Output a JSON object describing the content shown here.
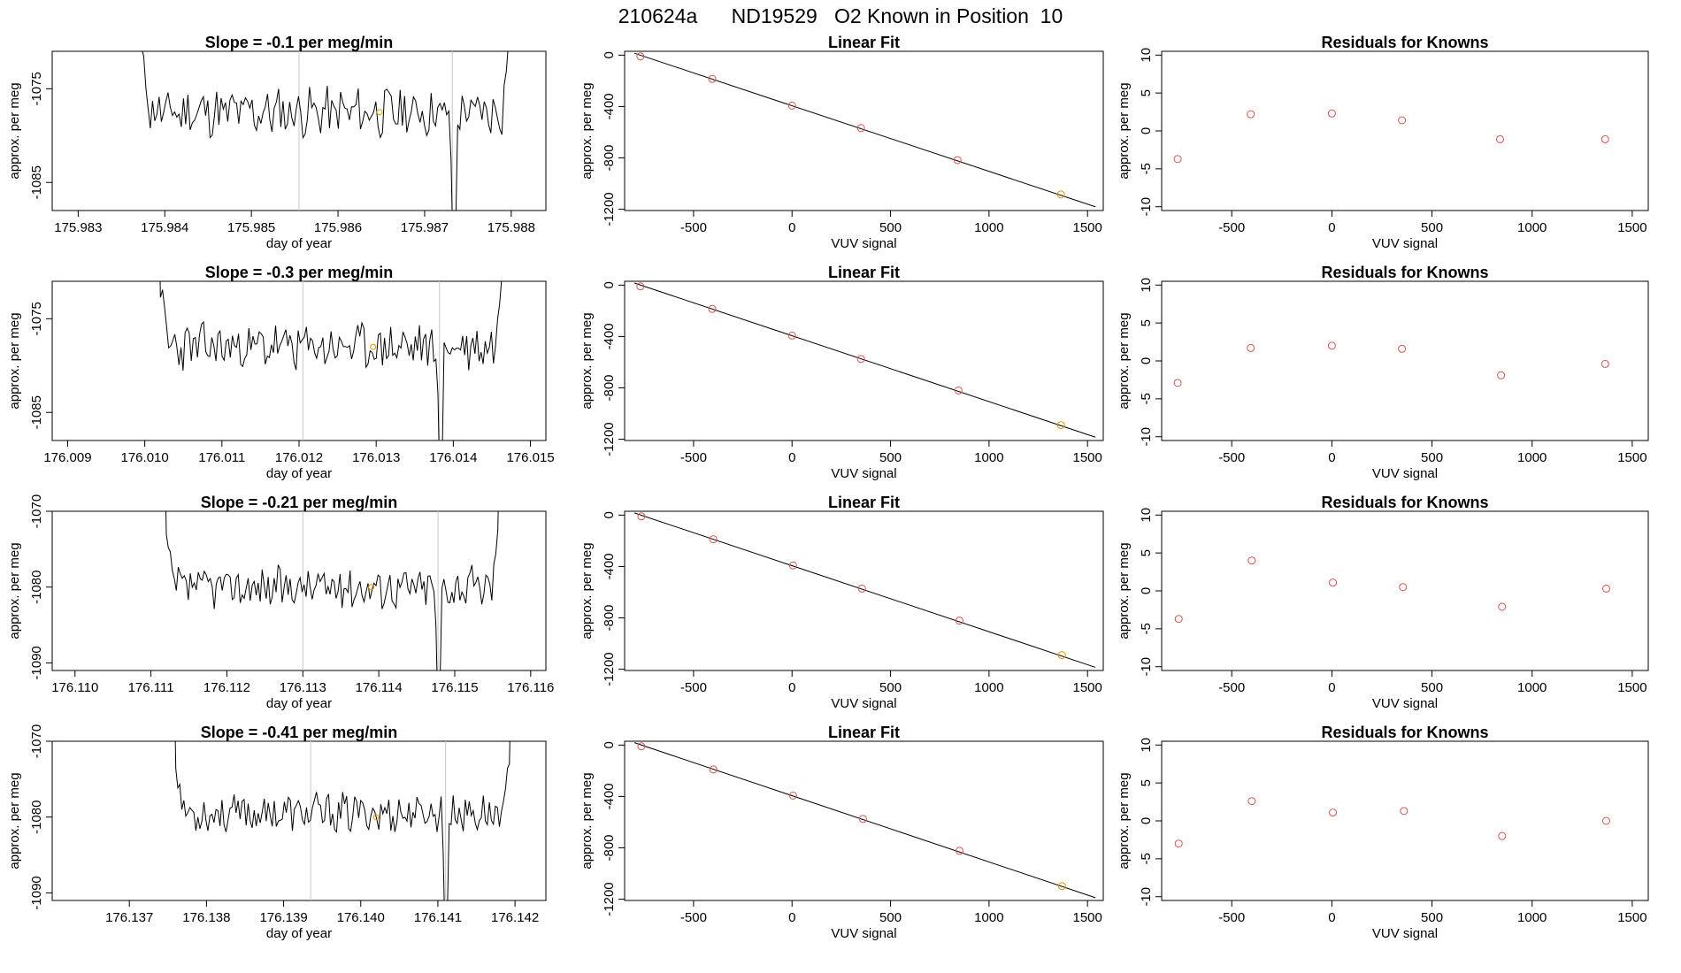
{
  "title": "210624a      ND19529   O2 Known in Position  10",
  "colors": {
    "trace": "#000000",
    "points": "#d9534f",
    "highlight": "#e69500",
    "guides": "#c8c8c8",
    "fitline": "#000000"
  },
  "chart_data": [
    {
      "type": "line",
      "panel": "time-series",
      "row": 0,
      "title": "Slope =  -0.1  per meg/min",
      "xlabel": "day of year",
      "ylabel": "approx. per meg",
      "xticks": [
        "175.983",
        "175.984",
        "175.985",
        "175.986",
        "175.987",
        "175.988"
      ],
      "xlim": [
        175.9827,
        175.9884
      ],
      "yticks": [
        "-1075",
        "-1085"
      ],
      "ylim": [
        -1088,
        -1071
      ],
      "x_start": 175.98368,
      "x_end": 175.98802,
      "baseline": -1077.5,
      "wiggle": 2.3,
      "vlines": [
        175.98555,
        175.98732
      ],
      "dip_at": 175.98732,
      "marker": [
        175.98648,
        -1077.5
      ],
      "seed": 11
    },
    {
      "type": "line",
      "panel": "time-series",
      "row": 1,
      "title": "Slope =  -0.3  per meg/min",
      "xlabel": "day of year",
      "ylabel": "approx. per meg",
      "xticks": [
        "176.009",
        "176.010",
        "176.011",
        "176.012",
        "176.013",
        "176.014",
        "176.015"
      ],
      "xlim": [
        176.0088,
        176.0152
      ],
      "yticks": [
        "-1075",
        "-1085"
      ],
      "ylim": [
        -1088,
        -1071
      ],
      "x_start": 176.01015,
      "x_end": 176.01468,
      "baseline": -1078,
      "wiggle": 2.2,
      "vlines": [
        176.01205,
        176.01382
      ],
      "dip_at": 176.01382,
      "marker": [
        176.01296,
        -1078
      ],
      "seed": 23
    },
    {
      "type": "line",
      "panel": "time-series",
      "row": 2,
      "title": "Slope =  -0.21  per meg/min",
      "xlabel": "day of year",
      "ylabel": "approx. per meg",
      "xticks": [
        "176.110",
        "176.111",
        "176.112",
        "176.113",
        "176.114",
        "176.115",
        "176.116"
      ],
      "xlim": [
        176.1097,
        176.1162
      ],
      "yticks": [
        "-1070",
        "-1080",
        "-1090"
      ],
      "ylim": [
        -1091,
        -1070
      ],
      "x_start": 176.11115,
      "x_end": 176.11562,
      "baseline": -1080,
      "wiggle": 2.4,
      "vlines": [
        176.113,
        176.11478
      ],
      "dip_at": 176.11478,
      "marker": [
        176.1139,
        -1080
      ],
      "seed": 37
    },
    {
      "type": "line",
      "panel": "time-series",
      "row": 3,
      "title": "Slope =  -0.41  per meg/min",
      "xlabel": "day of year",
      "ylabel": "approx. per meg",
      "xticks": [
        "176.137",
        "176.138",
        "176.139",
        "176.140",
        "176.141",
        "176.142"
      ],
      "xlim": [
        176.136,
        176.1424
      ],
      "yticks": [
        "-1070",
        "-1080",
        "-1090"
      ],
      "ylim": [
        -1091,
        -1070
      ],
      "x_start": 176.13755,
      "x_end": 176.14198,
      "baseline": -1079.5,
      "wiggle": 2.3,
      "vlines": [
        176.13935,
        176.1411
      ],
      "dip_at": 176.1411,
      "marker": [
        176.1402,
        -1080
      ],
      "seed": 53
    },
    {
      "type": "scatter",
      "panel": "linear-fit",
      "row": 0,
      "title": "Linear Fit",
      "xlabel": "VUV signal",
      "ylabel": "approx. per meg",
      "xticks": [
        "-500",
        "0",
        "500",
        "1000",
        "1500"
      ],
      "xlim": [
        -850,
        1580
      ],
      "yticks": [
        "0",
        "-400",
        "-800",
        "-1200"
      ],
      "ylim": [
        -1210,
        30
      ],
      "points": [
        [
          -770,
          -10
        ],
        [
          -405,
          -185
        ],
        [
          0,
          -393
        ],
        [
          350,
          -568
        ],
        [
          840,
          -817
        ],
        [
          1365,
          -1085
        ]
      ],
      "fit": {
        "slope": -0.511,
        "intercept": -394,
        "x_range": [
          -800,
          1540
        ]
      }
    },
    {
      "type": "scatter",
      "panel": "linear-fit",
      "row": 1,
      "title": "Linear Fit",
      "xlabel": "VUV signal",
      "ylabel": "approx. per meg",
      "xticks": [
        "-500",
        "0",
        "500",
        "1000",
        "1500"
      ],
      "xlim": [
        -850,
        1580
      ],
      "yticks": [
        "0",
        "-400",
        "-800",
        "-1200"
      ],
      "ylim": [
        -1210,
        30
      ],
      "points": [
        [
          -770,
          -10
        ],
        [
          -405,
          -185
        ],
        [
          0,
          -393
        ],
        [
          350,
          -575
        ],
        [
          845,
          -820
        ],
        [
          1365,
          -1090
        ]
      ],
      "fit": {
        "slope": -0.513,
        "intercept": -394,
        "x_range": [
          -800,
          1540
        ]
      }
    },
    {
      "type": "scatter",
      "panel": "linear-fit",
      "row": 2,
      "title": "Linear Fit",
      "xlabel": "VUV signal",
      "ylabel": "approx. per meg",
      "xticks": [
        "-500",
        "0",
        "500",
        "1000",
        "1500"
      ],
      "xlim": [
        -850,
        1580
      ],
      "yticks": [
        "0",
        "-400",
        "-800",
        "-1200"
      ],
      "ylim": [
        -1210,
        30
      ],
      "points": [
        [
          -765,
          -10
        ],
        [
          -400,
          -188
        ],
        [
          5,
          -392
        ],
        [
          355,
          -572
        ],
        [
          850,
          -822
        ],
        [
          1370,
          -1090
        ]
      ],
      "fit": {
        "slope": -0.514,
        "intercept": -394,
        "x_range": [
          -800,
          1540
        ]
      }
    },
    {
      "type": "scatter",
      "panel": "linear-fit",
      "row": 3,
      "title": "Linear Fit",
      "xlabel": "VUV signal",
      "ylabel": "approx. per meg",
      "xticks": [
        "-500",
        "0",
        "500",
        "1000",
        "1500"
      ],
      "xlim": [
        -850,
        1580
      ],
      "yticks": [
        "0",
        "-400",
        "-800",
        "-1200"
      ],
      "ylim": [
        -1210,
        30
      ],
      "points": [
        [
          -765,
          -10
        ],
        [
          -400,
          -190
        ],
        [
          5,
          -393
        ],
        [
          360,
          -575
        ],
        [
          850,
          -823
        ],
        [
          1370,
          -1098
        ]
      ],
      "fit": {
        "slope": -0.516,
        "intercept": -394,
        "x_range": [
          -800,
          1540
        ]
      }
    },
    {
      "type": "scatter",
      "panel": "residuals",
      "row": 0,
      "title": "Residuals for Knowns",
      "xlabel": "VUV signal",
      "ylabel": "approx. per meg",
      "xticks": [
        "-500",
        "0",
        "500",
        "1000",
        "1500"
      ],
      "xlim": [
        -850,
        1580
      ],
      "yticks": [
        "10",
        "5",
        "0",
        "-5",
        "-10"
      ],
      "ylim": [
        -10.5,
        10.5
      ],
      "points": [
        [
          -770,
          -3.7
        ],
        [
          -405,
          2.2
        ],
        [
          0,
          2.3
        ],
        [
          350,
          1.4
        ],
        [
          840,
          -1.1
        ],
        [
          1365,
          -1.1
        ]
      ]
    },
    {
      "type": "scatter",
      "panel": "residuals",
      "row": 1,
      "title": "Residuals for Knowns",
      "xlabel": "VUV signal",
      "ylabel": "approx. per meg",
      "xticks": [
        "-500",
        "0",
        "500",
        "1000",
        "1500"
      ],
      "xlim": [
        -850,
        1580
      ],
      "yticks": [
        "10",
        "5",
        "0",
        "-5",
        "-10"
      ],
      "ylim": [
        -10.5,
        10.5
      ],
      "points": [
        [
          -770,
          -2.9
        ],
        [
          -405,
          1.7
        ],
        [
          0,
          2.0
        ],
        [
          350,
          1.6
        ],
        [
          845,
          -1.9
        ],
        [
          1365,
          -0.4
        ]
      ]
    },
    {
      "type": "scatter",
      "panel": "residuals",
      "row": 2,
      "title": "Residuals for Knowns",
      "xlabel": "VUV signal",
      "ylabel": "approx. per meg",
      "xticks": [
        "-500",
        "0",
        "500",
        "1000",
        "1500"
      ],
      "xlim": [
        -850,
        1580
      ],
      "yticks": [
        "10",
        "5",
        "0",
        "-5",
        "-10"
      ],
      "ylim": [
        -10.5,
        10.5
      ],
      "points": [
        [
          -765,
          -3.7
        ],
        [
          -400,
          4.0
        ],
        [
          5,
          1.1
        ],
        [
          355,
          0.5
        ],
        [
          850,
          -2.1
        ],
        [
          1370,
          0.3
        ]
      ]
    },
    {
      "type": "scatter",
      "panel": "residuals",
      "row": 3,
      "title": "Residuals for Knowns",
      "xlabel": "VUV signal",
      "ylabel": "approx. per meg",
      "xticks": [
        "-500",
        "0",
        "500",
        "1000",
        "1500"
      ],
      "xlim": [
        -850,
        1580
      ],
      "yticks": [
        "10",
        "5",
        "0",
        "-5",
        "-10"
      ],
      "ylim": [
        -10.5,
        10.5
      ],
      "points": [
        [
          -765,
          -3.0
        ],
        [
          -400,
          2.6
        ],
        [
          5,
          1.1
        ],
        [
          360,
          1.3
        ],
        [
          850,
          -2.0
        ],
        [
          1370,
          0.0
        ]
      ]
    }
  ]
}
